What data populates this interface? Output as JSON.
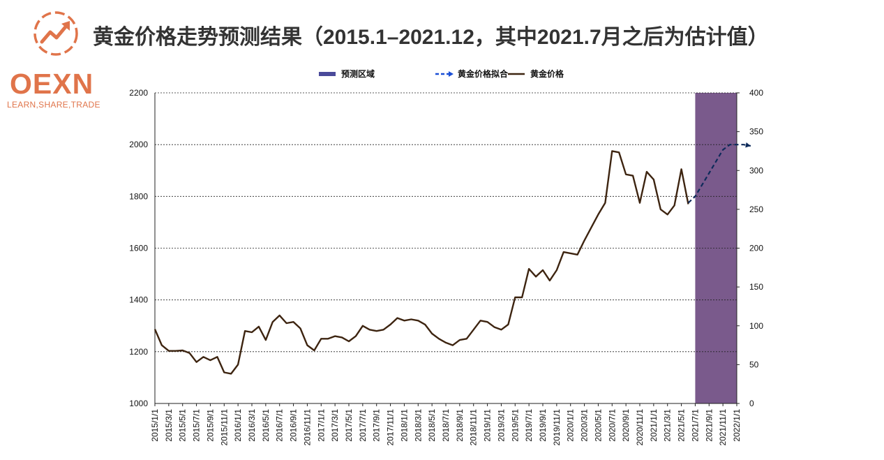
{
  "logo": {
    "name": "OEXN",
    "tagline": "LEARN,SHARE,TRADE",
    "color": "#e0744a"
  },
  "title": "黄金价格走势预测结果（2015.1–2021.12，其中2021.7月之后为估计值）",
  "chart_data": {
    "type": "line",
    "legend": [
      {
        "label": "预测区域",
        "style": "area",
        "color": "#7a5a8c"
      },
      {
        "label": "黄金价格拟合",
        "style": "dashed",
        "color": "#0d2a5a"
      },
      {
        "label": "黄金价格",
        "style": "solid",
        "color": "#3d2410"
      }
    ],
    "x_labels": [
      "2015/1/1",
      "2015/3/1",
      "2015/5/1",
      "2015/7/1",
      "2015/9/1",
      "2015/11/1",
      "2016/1/1",
      "2016/3/1",
      "2016/5/1",
      "2016/7/1",
      "2016/9/1",
      "2016/11/1",
      "2017/1/1",
      "2017/3/1",
      "2017/5/1",
      "2017/7/1",
      "2017/9/1",
      "2017/11/1",
      "2018/1/1",
      "2018/3/1",
      "2018/5/1",
      "2018/7/1",
      "2018/9/1",
      "2018/11/1",
      "2019/1/1",
      "2019/3/1",
      "2019/5/1",
      "2019/7/1",
      "2019/9/1",
      "2019/11/1",
      "2020/1/1",
      "2020/3/1",
      "2020/5/1",
      "2020/7/1",
      "2020/9/1",
      "2020/11/1",
      "2021/1/1",
      "2021/3/1",
      "2021/5/1",
      "2021/7/1",
      "2021/9/1",
      "2021/11/1",
      "2022/1/1"
    ],
    "y_left": {
      "range": [
        1000,
        2200
      ],
      "ticks": [
        "1000",
        "1200",
        "1400",
        "1600",
        "1800",
        "2000",
        "2200"
      ]
    },
    "y_right": {
      "range": [
        0,
        400
      ],
      "ticks": [
        "0",
        "50",
        "100",
        "150",
        "200",
        "250",
        "300",
        "350",
        "400"
      ]
    },
    "gridlines": "dotted",
    "forecast_region": {
      "start": "2021/7/1",
      "end": "2022/1/1"
    },
    "series": [
      {
        "name": "黄金价格",
        "values": [
          1287,
          1225,
          1203,
          1203,
          1205,
          1195,
          1160,
          1180,
          1167,
          1180,
          1120,
          1115,
          1150,
          1280,
          1275,
          1297,
          1245,
          1315,
          1340,
          1310,
          1315,
          1290,
          1225,
          1205,
          1250,
          1250,
          1260,
          1255,
          1240,
          1260,
          1300,
          1285,
          1280,
          1285,
          1305,
          1330,
          1320,
          1325,
          1320,
          1305,
          1270,
          1250,
          1235,
          1225,
          1245,
          1250,
          1285,
          1320,
          1315,
          1295,
          1285,
          1305,
          1410,
          1410,
          1520,
          1490,
          1515,
          1475,
          1515,
          1585,
          1580,
          1575,
          1630,
          1680,
          1730,
          1775,
          1975,
          1970,
          1885,
          1880,
          1775,
          1895,
          1865,
          1750,
          1730,
          1765,
          1905,
          1770
        ]
      },
      {
        "name": "黄金价格拟合",
        "values": [
          1775,
          1800,
          1845,
          1890,
          1935,
          1980,
          2000,
          2000,
          2000,
          1995
        ]
      }
    ]
  }
}
